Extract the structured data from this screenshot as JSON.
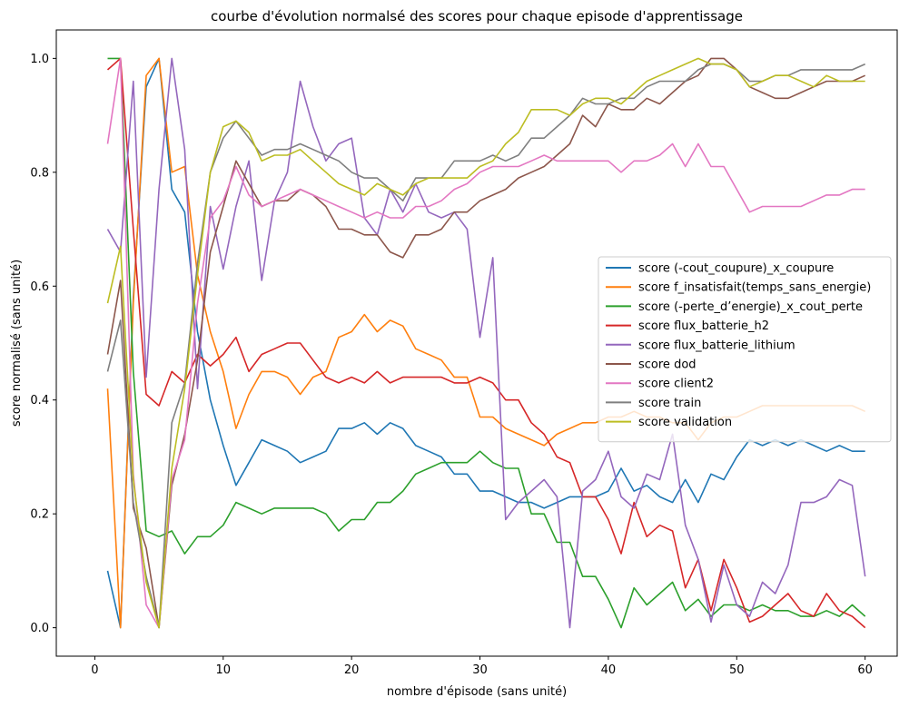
{
  "chart_data": {
    "type": "line",
    "title": "courbe d'évolution normalsé des scores pour chaque episode d'apprentissage",
    "xlabel": "nombre d'épisode (sans unité)",
    "ylabel": "score normalisé (sans unité)",
    "xlim": [
      -3,
      62.5
    ],
    "ylim": [
      -0.05,
      1.05
    ],
    "xticks": [
      0,
      10,
      20,
      30,
      40,
      50,
      60
    ],
    "yticks": [
      0.0,
      0.2,
      0.4,
      0.6,
      0.8,
      1.0
    ],
    "xtick_labels": [
      "0",
      "10",
      "20",
      "30",
      "40",
      "50",
      "60"
    ],
    "ytick_labels": [
      "0.0",
      "0.2",
      "0.4",
      "0.6",
      "0.8",
      "1.0"
    ],
    "grid": false,
    "legend_position": "center-right",
    "x": [
      1,
      2,
      3,
      4,
      5,
      6,
      7,
      8,
      9,
      10,
      11,
      12,
      13,
      14,
      15,
      16,
      17,
      18,
      19,
      20,
      21,
      22,
      23,
      24,
      25,
      26,
      27,
      28,
      29,
      30,
      31,
      32,
      33,
      34,
      35,
      36,
      37,
      38,
      39,
      40,
      41,
      42,
      43,
      44,
      45,
      46,
      47,
      48,
      49,
      50,
      51,
      52,
      53,
      54,
      55,
      56,
      57,
      58,
      59,
      60
    ],
    "series": [
      {
        "name": "score (-cout_coupure)_x_coupure",
        "color": "#1f77b4",
        "values": [
          0.1,
          0.0,
          0.58,
          0.95,
          1.0,
          0.77,
          0.73,
          0.52,
          0.4,
          0.32,
          0.25,
          0.29,
          0.33,
          0.32,
          0.31,
          0.29,
          0.3,
          0.31,
          0.35,
          0.35,
          0.36,
          0.34,
          0.36,
          0.35,
          0.32,
          0.31,
          0.3,
          0.27,
          0.27,
          0.24,
          0.24,
          0.23,
          0.22,
          0.22,
          0.21,
          0.22,
          0.23,
          0.23,
          0.23,
          0.24,
          0.28,
          0.24,
          0.25,
          0.23,
          0.22,
          0.26,
          0.22,
          0.27,
          0.26,
          0.3,
          0.33,
          0.32,
          0.33,
          0.32,
          0.33,
          0.32,
          0.31,
          0.32,
          0.31,
          0.31
        ]
      },
      {
        "name": "score f_insatisfait(temps_sans_energie)",
        "color": "#ff7f0e",
        "values": [
          0.42,
          0.0,
          0.57,
          0.97,
          1.0,
          0.8,
          0.81,
          0.62,
          0.52,
          0.45,
          0.35,
          0.41,
          0.45,
          0.45,
          0.44,
          0.41,
          0.44,
          0.45,
          0.51,
          0.52,
          0.55,
          0.52,
          0.54,
          0.53,
          0.49,
          0.48,
          0.47,
          0.44,
          0.44,
          0.37,
          0.37,
          0.35,
          0.34,
          0.33,
          0.32,
          0.34,
          0.35,
          0.36,
          0.36,
          0.37,
          0.37,
          0.38,
          0.37,
          0.37,
          0.36,
          0.36,
          0.33,
          0.36,
          0.37,
          0.37,
          0.38,
          0.39,
          0.39,
          0.39,
          0.39,
          0.39,
          0.39,
          0.39,
          0.39,
          0.38
        ]
      },
      {
        "name": "score (-perte_d’energie)_x_cout_perte",
        "color": "#2ca02c",
        "values": [
          1.0,
          1.0,
          0.45,
          0.17,
          0.16,
          0.17,
          0.13,
          0.16,
          0.16,
          0.18,
          0.22,
          0.21,
          0.2,
          0.21,
          0.21,
          0.21,
          0.21,
          0.2,
          0.17,
          0.19,
          0.19,
          0.22,
          0.22,
          0.24,
          0.27,
          0.28,
          0.29,
          0.29,
          0.29,
          0.31,
          0.29,
          0.28,
          0.28,
          0.2,
          0.2,
          0.15,
          0.15,
          0.09,
          0.09,
          0.05,
          0.0,
          0.07,
          0.04,
          0.06,
          0.08,
          0.03,
          0.05,
          0.02,
          0.04,
          0.04,
          0.03,
          0.04,
          0.03,
          0.03,
          0.02,
          0.02,
          0.03,
          0.02,
          0.04,
          0.02
        ]
      },
      {
        "name": "score flux_batterie_h2",
        "color": "#d62728",
        "values": [
          0.98,
          1.0,
          0.7,
          0.41,
          0.39,
          0.45,
          0.43,
          0.48,
          0.46,
          0.48,
          0.51,
          0.45,
          0.48,
          0.49,
          0.5,
          0.5,
          0.47,
          0.44,
          0.43,
          0.44,
          0.43,
          0.45,
          0.43,
          0.44,
          0.44,
          0.44,
          0.44,
          0.43,
          0.43,
          0.44,
          0.43,
          0.4,
          0.4,
          0.36,
          0.34,
          0.3,
          0.29,
          0.23,
          0.23,
          0.19,
          0.13,
          0.22,
          0.16,
          0.18,
          0.17,
          0.07,
          0.12,
          0.03,
          0.12,
          0.07,
          0.01,
          0.02,
          0.04,
          0.06,
          0.03,
          0.02,
          0.06,
          0.03,
          0.02,
          0.0
        ]
      },
      {
        "name": "score flux_batterie_lithium",
        "color": "#9467bd",
        "values": [
          0.7,
          0.66,
          0.96,
          0.44,
          0.77,
          1.0,
          0.84,
          0.42,
          0.74,
          0.63,
          0.74,
          0.82,
          0.61,
          0.75,
          0.8,
          0.96,
          0.88,
          0.82,
          0.85,
          0.86,
          0.72,
          0.69,
          0.77,
          0.73,
          0.78,
          0.73,
          0.72,
          0.73,
          0.7,
          0.51,
          0.65,
          0.19,
          0.22,
          0.24,
          0.26,
          0.23,
          0.0,
          0.24,
          0.26,
          0.31,
          0.23,
          0.21,
          0.27,
          0.26,
          0.34,
          0.18,
          0.12,
          0.01,
          0.11,
          0.04,
          0.02,
          0.08,
          0.06,
          0.11,
          0.22,
          0.22,
          0.23,
          0.26,
          0.25,
          0.09
        ]
      },
      {
        "name": "score dod",
        "color": "#8c564b",
        "values": [
          0.48,
          0.61,
          0.21,
          0.14,
          0.0,
          0.25,
          0.34,
          0.47,
          0.66,
          0.74,
          0.82,
          0.78,
          0.74,
          0.75,
          0.75,
          0.77,
          0.76,
          0.74,
          0.7,
          0.7,
          0.69,
          0.69,
          0.66,
          0.65,
          0.69,
          0.69,
          0.7,
          0.73,
          0.73,
          0.75,
          0.76,
          0.77,
          0.79,
          0.8,
          0.81,
          0.83,
          0.85,
          0.9,
          0.88,
          0.92,
          0.91,
          0.91,
          0.93,
          0.92,
          0.94,
          0.96,
          0.97,
          1.0,
          1.0,
          0.98,
          0.95,
          0.94,
          0.93,
          0.93,
          0.94,
          0.95,
          0.96,
          0.96,
          0.96,
          0.97
        ]
      },
      {
        "name": "score client2",
        "color": "#e377c2",
        "values": [
          0.85,
          1.0,
          0.27,
          0.04,
          0.0,
          0.26,
          0.33,
          0.57,
          0.72,
          0.75,
          0.81,
          0.76,
          0.74,
          0.75,
          0.76,
          0.77,
          0.76,
          0.75,
          0.74,
          0.73,
          0.72,
          0.73,
          0.72,
          0.72,
          0.74,
          0.74,
          0.75,
          0.77,
          0.78,
          0.8,
          0.81,
          0.81,
          0.81,
          0.82,
          0.83,
          0.82,
          0.82,
          0.82,
          0.82,
          0.82,
          0.8,
          0.82,
          0.82,
          0.83,
          0.85,
          0.81,
          0.85,
          0.81,
          0.81,
          0.77,
          0.73,
          0.74,
          0.74,
          0.74,
          0.74,
          0.75,
          0.76,
          0.76,
          0.77,
          0.77
        ]
      },
      {
        "name": "score train",
        "color": "#7f7f7f",
        "values": [
          0.45,
          0.54,
          0.22,
          0.09,
          0.0,
          0.36,
          0.43,
          0.64,
          0.8,
          0.86,
          0.89,
          0.86,
          0.83,
          0.84,
          0.84,
          0.85,
          0.84,
          0.83,
          0.82,
          0.8,
          0.79,
          0.79,
          0.77,
          0.75,
          0.79,
          0.79,
          0.79,
          0.82,
          0.82,
          0.82,
          0.83,
          0.82,
          0.83,
          0.86,
          0.86,
          0.88,
          0.9,
          0.93,
          0.92,
          0.92,
          0.93,
          0.93,
          0.95,
          0.96,
          0.96,
          0.96,
          0.98,
          0.99,
          0.99,
          0.98,
          0.96,
          0.96,
          0.97,
          0.97,
          0.98,
          0.98,
          0.98,
          0.98,
          0.98,
          0.99
        ]
      },
      {
        "name": "score validation",
        "color": "#bcbd22",
        "values": [
          0.57,
          0.67,
          0.26,
          0.08,
          0.0,
          0.28,
          0.42,
          0.62,
          0.8,
          0.88,
          0.89,
          0.87,
          0.82,
          0.83,
          0.83,
          0.84,
          0.82,
          0.8,
          0.78,
          0.77,
          0.76,
          0.78,
          0.77,
          0.76,
          0.78,
          0.79,
          0.79,
          0.79,
          0.79,
          0.81,
          0.82,
          0.85,
          0.87,
          0.91,
          0.91,
          0.91,
          0.9,
          0.92,
          0.93,
          0.93,
          0.92,
          0.94,
          0.96,
          0.97,
          0.98,
          0.99,
          1.0,
          0.99,
          0.99,
          0.98,
          0.95,
          0.96,
          0.97,
          0.97,
          0.96,
          0.95,
          0.97,
          0.96,
          0.96,
          0.96
        ]
      }
    ]
  }
}
